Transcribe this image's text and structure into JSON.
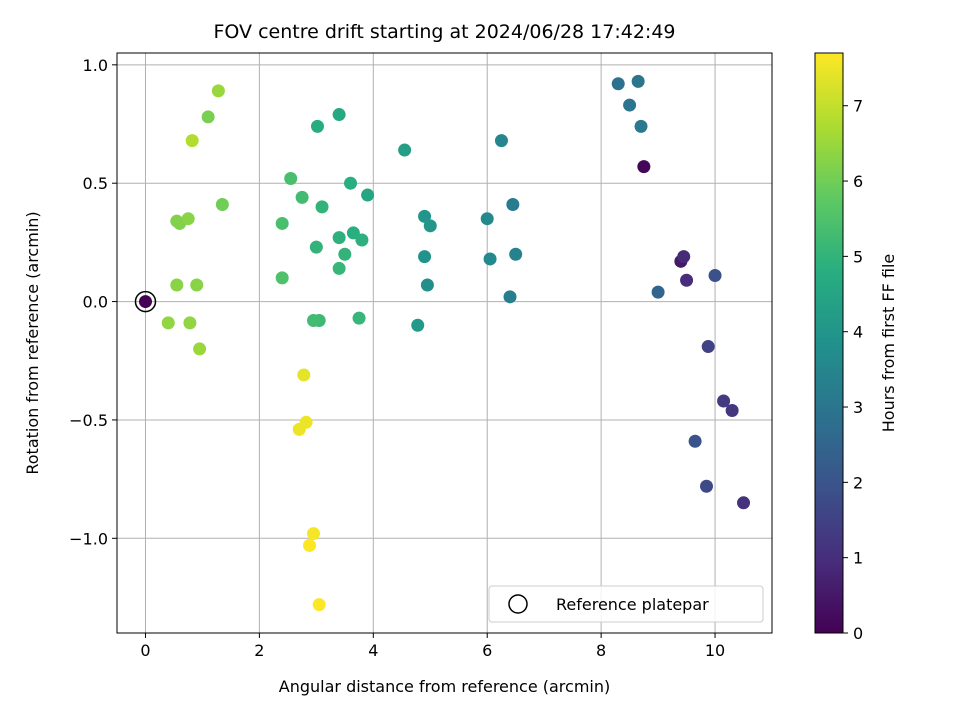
{
  "chart_data": {
    "type": "scatter",
    "title": "FOV centre drift starting at 2024/06/28 17:42:49",
    "xlabel": "Angular distance from reference (arcmin)",
    "ylabel": "Rotation from reference (arcmin)",
    "colorbar_label": "Hours from first FF file",
    "xlim": [
      -0.5,
      11.0
    ],
    "ylim": [
      -1.4,
      1.05
    ],
    "clim": [
      0,
      7.7
    ],
    "colormap": "viridis",
    "x_ticks": [
      0,
      2,
      4,
      6,
      8,
      10
    ],
    "x_tick_labels": [
      "0",
      "2",
      "4",
      "6",
      "8",
      "10"
    ],
    "y_ticks": [
      1.0,
      0.5,
      0.0,
      -0.5,
      -1.0
    ],
    "y_tick_labels": [
      "1.0",
      "0.5",
      "0.0",
      "−0.5",
      "−1.0"
    ],
    "colorbar_ticks": [
      0,
      1,
      2,
      3,
      4,
      5,
      6,
      7
    ],
    "colorbar_tick_labels": [
      "0",
      "1",
      "2",
      "3",
      "4",
      "5",
      "6",
      "7"
    ],
    "grid": true,
    "legend": {
      "position": "lower-right",
      "entries": [
        "Reference platepar"
      ]
    },
    "reference_point": {
      "x": 0.0,
      "y": 0.0,
      "hours": 0.0
    },
    "points": [
      {
        "x": 8.75,
        "y": 0.57,
        "h": 0.1
      },
      {
        "x": 9.4,
        "y": 0.17,
        "h": 0.5
      },
      {
        "x": 9.45,
        "y": 0.19,
        "h": 0.9
      },
      {
        "x": 9.5,
        "y": 0.09,
        "h": 1.0
      },
      {
        "x": 10.5,
        "y": -0.85,
        "h": 1.1
      },
      {
        "x": 10.3,
        "y": -0.46,
        "h": 1.2
      },
      {
        "x": 10.15,
        "y": -0.42,
        "h": 1.3
      },
      {
        "x": 9.88,
        "y": -0.19,
        "h": 1.5
      },
      {
        "x": 9.85,
        "y": -0.78,
        "h": 1.7
      },
      {
        "x": 10.0,
        "y": 0.11,
        "h": 1.9
      },
      {
        "x": 9.65,
        "y": -0.59,
        "h": 2.0
      },
      {
        "x": 9.0,
        "y": 0.04,
        "h": 2.5
      },
      {
        "x": 8.3,
        "y": 0.92,
        "h": 2.9
      },
      {
        "x": 8.5,
        "y": 0.83,
        "h": 3.0
      },
      {
        "x": 8.65,
        "y": 0.93,
        "h": 3.0
      },
      {
        "x": 8.7,
        "y": 0.74,
        "h": 3.1
      },
      {
        "x": 6.45,
        "y": 0.41,
        "h": 3.2
      },
      {
        "x": 6.4,
        "y": 0.02,
        "h": 3.3
      },
      {
        "x": 6.5,
        "y": 0.2,
        "h": 3.4
      },
      {
        "x": 6.25,
        "y": 0.68,
        "h": 3.5
      },
      {
        "x": 6.05,
        "y": 0.18,
        "h": 3.6
      },
      {
        "x": 6.0,
        "y": 0.35,
        "h": 3.6
      },
      {
        "x": 4.95,
        "y": 0.07,
        "h": 3.8
      },
      {
        "x": 4.9,
        "y": 0.19,
        "h": 3.9
      },
      {
        "x": 4.9,
        "y": 0.36,
        "h": 4.0
      },
      {
        "x": 5.0,
        "y": 0.32,
        "h": 4.0
      },
      {
        "x": 4.78,
        "y": -0.1,
        "h": 4.1
      },
      {
        "x": 4.55,
        "y": 0.64,
        "h": 4.3
      },
      {
        "x": 3.9,
        "y": 0.45,
        "h": 4.5
      },
      {
        "x": 3.4,
        "y": 0.79,
        "h": 4.6
      },
      {
        "x": 3.02,
        "y": 0.74,
        "h": 4.7
      },
      {
        "x": 3.6,
        "y": 0.5,
        "h": 4.8
      },
      {
        "x": 3.65,
        "y": 0.29,
        "h": 4.8
      },
      {
        "x": 3.8,
        "y": 0.26,
        "h": 4.9
      },
      {
        "x": 3.4,
        "y": 0.27,
        "h": 4.9
      },
      {
        "x": 3.5,
        "y": 0.2,
        "h": 5.0
      },
      {
        "x": 3.1,
        "y": 0.4,
        "h": 5.0
      },
      {
        "x": 3.0,
        "y": 0.23,
        "h": 5.0
      },
      {
        "x": 3.4,
        "y": 0.14,
        "h": 5.1
      },
      {
        "x": 3.75,
        "y": -0.07,
        "h": 5.1
      },
      {
        "x": 3.05,
        "y": -0.08,
        "h": 5.2
      },
      {
        "x": 2.95,
        "y": -0.08,
        "h": 5.3
      },
      {
        "x": 2.75,
        "y": 0.44,
        "h": 5.3
      },
      {
        "x": 2.55,
        "y": 0.52,
        "h": 5.4
      },
      {
        "x": 2.4,
        "y": 0.33,
        "h": 5.4
      },
      {
        "x": 2.4,
        "y": 0.1,
        "h": 5.5
      },
      {
        "x": 1.35,
        "y": 0.41,
        "h": 6.0
      },
      {
        "x": 1.1,
        "y": 0.78,
        "h": 6.1
      },
      {
        "x": 0.55,
        "y": 0.34,
        "h": 6.2
      },
      {
        "x": 0.6,
        "y": 0.33,
        "h": 6.2
      },
      {
        "x": 0.75,
        "y": 0.35,
        "h": 6.3
      },
      {
        "x": 0.55,
        "y": 0.07,
        "h": 6.3
      },
      {
        "x": 0.9,
        "y": 0.07,
        "h": 6.3
      },
      {
        "x": 0.4,
        "y": -0.09,
        "h": 6.4
      },
      {
        "x": 0.78,
        "y": -0.09,
        "h": 6.4
      },
      {
        "x": 0.95,
        "y": -0.2,
        "h": 6.5
      },
      {
        "x": 1.28,
        "y": 0.89,
        "h": 6.5
      },
      {
        "x": 0.82,
        "y": 0.68,
        "h": 6.8
      },
      {
        "x": 2.78,
        "y": -0.31,
        "h": 7.4
      },
      {
        "x": 2.82,
        "y": -0.51,
        "h": 7.5
      },
      {
        "x": 2.7,
        "y": -0.54,
        "h": 7.5
      },
      {
        "x": 2.95,
        "y": -0.98,
        "h": 7.6
      },
      {
        "x": 2.88,
        "y": -1.03,
        "h": 7.7
      },
      {
        "x": 3.05,
        "y": -1.28,
        "h": 7.7
      }
    ]
  }
}
